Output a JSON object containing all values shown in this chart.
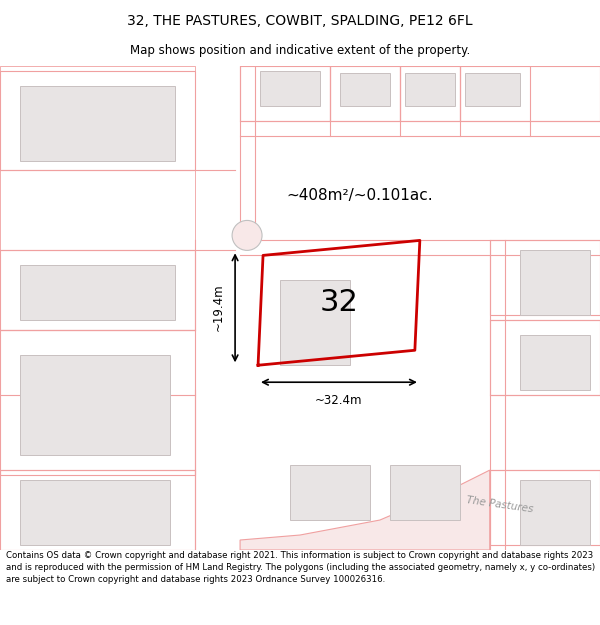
{
  "title": "32, THE PASTURES, COWBIT, SPALDING, PE12 6FL",
  "subtitle": "Map shows position and indicative extent of the property.",
  "footer": "Contains OS data © Crown copyright and database right 2021. This information is subject to Crown copyright and database rights 2023 and is reproduced with the permission of HM Land Registry. The polygons (including the associated geometry, namely x, y co-ordinates) are subject to Crown copyright and database rights 2023 Ordnance Survey 100026316.",
  "bg_color": "#ffffff",
  "map_bg_color": "#ffffff",
  "road_color": "#f0a0a0",
  "building_fill": "#e8e4e4",
  "building_outline": "#c8c0c0",
  "target_outline": "#cc0000",
  "label_32": "32",
  "area_label": "~408m²/~0.101ac.",
  "dim_width": "~32.4m",
  "dim_height": "~19.4m",
  "road_label": "The Pastures",
  "title_fontsize": 10,
  "subtitle_fontsize": 8.5,
  "footer_fontsize": 6.2,
  "note_color": "#888888"
}
